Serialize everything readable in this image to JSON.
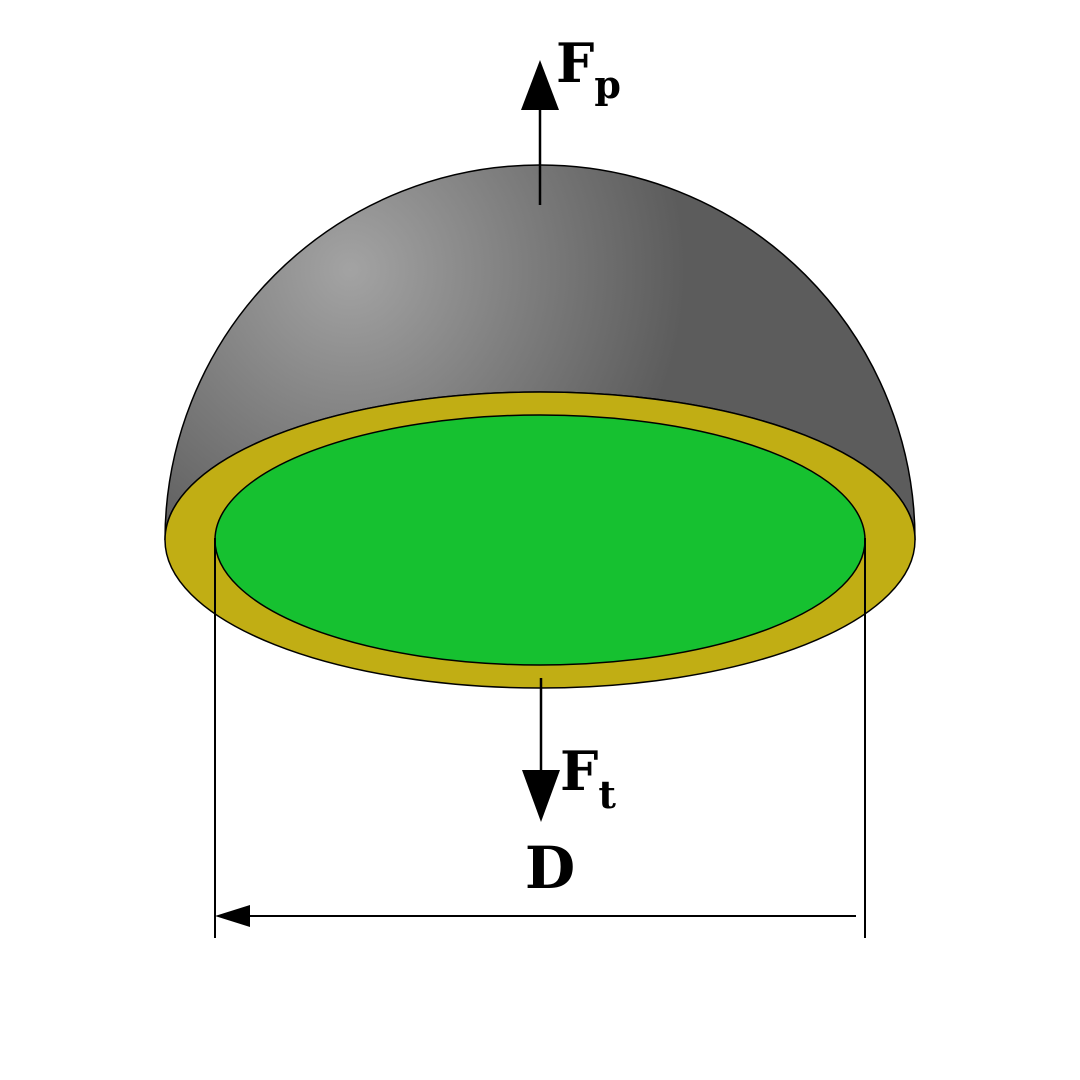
{
  "labels": {
    "pressure_force": {
      "main": "F",
      "sub": "p"
    },
    "tension_force": {
      "main": "F",
      "sub": "t"
    },
    "diameter": "D"
  },
  "colors": {
    "shell_light": "#a3a3a3",
    "shell_dark": "#5c5c5c",
    "wall_section": "#c1ae14",
    "interior_section": "#16c130",
    "lines": "#000000",
    "background": "#ffffff"
  }
}
